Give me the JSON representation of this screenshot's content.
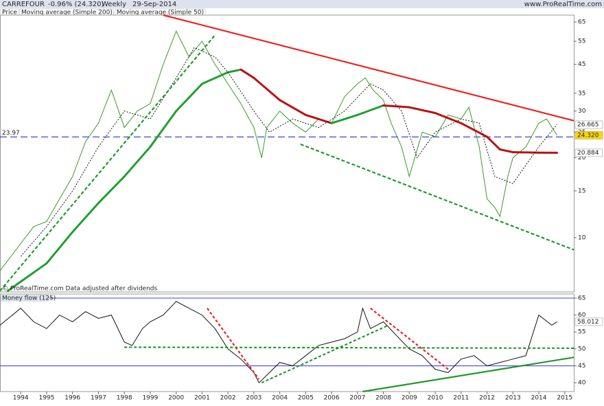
{
  "header": {
    "symbol": "CARREFOUR",
    "change": "-0.96% (24.320)",
    "period": "Weekly",
    "date": "29-Sep-2014",
    "site": "www.ProRealTime.com"
  },
  "chart_data": [
    {
      "type": "line",
      "log_scale": true,
      "xlim": [
        1993.2,
        2015.35
      ],
      "ylim": [
        6.24,
        69
      ],
      "yticks": [
        10,
        15,
        20,
        25,
        30,
        35,
        45,
        55,
        65
      ],
      "note": "© ProRealTime.com Data adjusted after dividends",
      "series": [
        {
          "name": "Price",
          "color": "#3a9a2a",
          "width": 1,
          "x": [
            1993.2,
            1994,
            1994.5,
            1995,
            1995.5,
            1996,
            1996.5,
            1997,
            1997.5,
            1998,
            1998.5,
            1999,
            1999.5,
            2000,
            2000.5,
            2001,
            2001.5,
            2002,
            2002.5,
            2003,
            2003.3,
            2003.5,
            2004,
            2004.5,
            2005,
            2005.5,
            2006,
            2006.5,
            2007,
            2007.3,
            2007.6,
            2008,
            2008.3,
            2008.7,
            2009,
            2009.5,
            2010,
            2010.5,
            2011,
            2011.3,
            2011.7,
            2012,
            2012.3,
            2012.5,
            2012.8,
            2013,
            2013.5,
            2014,
            2014.3,
            2014.7
          ],
          "values": [
            7.5,
            9.5,
            11,
            11.5,
            14,
            17,
            23,
            27,
            36,
            26,
            30,
            32,
            45,
            60,
            48,
            55,
            45,
            38,
            32,
            26,
            20,
            26,
            30,
            27,
            25,
            28,
            27,
            34,
            38,
            40,
            36,
            33,
            27,
            22,
            17,
            25,
            24,
            29,
            28,
            31,
            22,
            14,
            13,
            12,
            17,
            20,
            22,
            27,
            28,
            24.32
          ]
        },
        {
          "name": "Moving average (Simple 200)",
          "legend_color": "#cc1111",
          "up_color": "#1fa030",
          "down_color": "#bb1111",
          "width": 3,
          "x": [
            1993.5,
            1995,
            1996,
            1997,
            1998,
            1999,
            2000,
            2001,
            2002,
            2002.5,
            2003,
            2004,
            2005,
            2006,
            2007,
            2008,
            2009,
            2010,
            2011,
            2012,
            2012.5,
            2013,
            2014,
            2014.7
          ],
          "values": [
            6.3,
            8,
            10.5,
            13.5,
            17,
            22,
            30,
            38,
            42,
            43,
            40,
            33,
            29,
            27,
            29,
            31.5,
            31,
            29.5,
            27,
            24,
            21.5,
            21,
            20.9,
            20.884
          ]
        },
        {
          "name": "Moving average (Simple 50)",
          "color": "#111111",
          "width": 1,
          "dash": "2,2",
          "x": [
            1994,
            1995,
            1996,
            1997,
            1998,
            1999,
            2000,
            2000.7,
            2001.5,
            2002,
            2003,
            2003.6,
            2004.5,
            2005.5,
            2006.5,
            2007.5,
            2008,
            2008.7,
            2009.3,
            2010,
            2011,
            2011.7,
            2012.3,
            2013,
            2014,
            2014.7
          ],
          "values": [
            8.5,
            11,
            15,
            22,
            30,
            28,
            40,
            52,
            48,
            42,
            30,
            25,
            28,
            26,
            30,
            38,
            36,
            30,
            20,
            25,
            28,
            27,
            17,
            16,
            22,
            26.665
          ]
        }
      ],
      "hlines": [
        {
          "value": 23.97,
          "color": "#2233cc",
          "dash": "10,5"
        }
      ],
      "trendlines": [
        {
          "x": [
            1999.5,
            2015.35
          ],
          "y": [
            69,
            27.6
          ],
          "color": "#ee2222",
          "dash": "none"
        },
        {
          "x": [
            1993.2,
            2001.5
          ],
          "y": [
            6.3,
            58
          ],
          "color": "#1f9a2a",
          "dash": "5,3"
        },
        {
          "x": [
            2004.8,
            2015.35
          ],
          "y": [
            22.5,
            9
          ],
          "color": "#1f9a2a",
          "dash": "5,3"
        }
      ],
      "tags": [
        {
          "value": 26.665,
          "color": "#000000",
          "background": "#ffffff"
        },
        {
          "value": 24.32,
          "label": "24.320",
          "color": "#000000",
          "background": "#ffd700"
        },
        {
          "value": 20.884,
          "color": "#cc1111",
          "background": "#ffffff"
        }
      ]
    },
    {
      "type": "line",
      "log_scale": false,
      "title": "Money flow (125)",
      "xlim": [
        1993.2,
        2015.35
      ],
      "ylim": [
        37.4,
        66.2
      ],
      "yticks": [
        40,
        45,
        50,
        55,
        60,
        65
      ],
      "xticks": [
        1994,
        1995,
        1996,
        1997,
        1998,
        1999,
        2000,
        2001,
        2002,
        2003,
        2004,
        2005,
        2006,
        2007,
        2008,
        2009,
        2010,
        2011,
        2012,
        2013,
        2014,
        2015
      ],
      "series": [
        {
          "name": "Money flow",
          "color": "#111111",
          "width": 1,
          "x": [
            1993.2,
            1994,
            1994.5,
            1995,
            1995.5,
            1996,
            1996.5,
            1997,
            1997.5,
            1998,
            1998.3,
            1998.7,
            1999,
            1999.5,
            2000,
            2000.5,
            2001,
            2001.5,
            2002,
            2002.5,
            2003,
            2003.2,
            2003.6,
            2004,
            2004.5,
            2005,
            2005.5,
            2006,
            2006.5,
            2007,
            2007.2,
            2007.5,
            2008,
            2008.5,
            2009,
            2009.5,
            2010,
            2010.5,
            2011,
            2011.5,
            2012,
            2012.5,
            2013,
            2013.5,
            2014,
            2014.5,
            2014.7
          ],
          "values": [
            57,
            62,
            58,
            56,
            60,
            58,
            61,
            59,
            60,
            52,
            51,
            56,
            58,
            60,
            64,
            62,
            60,
            56,
            50,
            47,
            43,
            40,
            43,
            46,
            45,
            48,
            51,
            52,
            53,
            55,
            62,
            56,
            58,
            54,
            50,
            48,
            44,
            43,
            47,
            48,
            45,
            46,
            47,
            48,
            60,
            57,
            58.012
          ]
        }
      ],
      "hlines": [
        {
          "value": 45,
          "color": "#5555dd",
          "dash": "none"
        },
        {
          "value": 65,
          "color": "#5555dd",
          "dash": "none"
        }
      ],
      "trendlines": [
        {
          "x": [
            2001.2,
            2003.2
          ],
          "y": [
            62,
            41
          ],
          "color": "#ee2222",
          "dash": "4,3"
        },
        {
          "x": [
            2003.3,
            2008.2
          ],
          "y": [
            40,
            57
          ],
          "color": "#1f9a2a",
          "dash": "4,3"
        },
        {
          "x": [
            2007.5,
            2010.5
          ],
          "y": [
            62,
            44
          ],
          "color": "#ee2222",
          "dash": "4,3"
        },
        {
          "x": [
            1998,
            2015.35
          ],
          "y": [
            50.5,
            50.2
          ],
          "color": "#1f9a2a",
          "dash": "4,3"
        },
        {
          "x": [
            2007.2,
            2015.35
          ],
          "y": [
            37.4,
            47.5
          ],
          "color": "#1f9a2a",
          "dash": "none"
        }
      ],
      "tags": [
        {
          "value": 58.012,
          "color": "#000000",
          "background": "#ffffff"
        }
      ]
    }
  ]
}
